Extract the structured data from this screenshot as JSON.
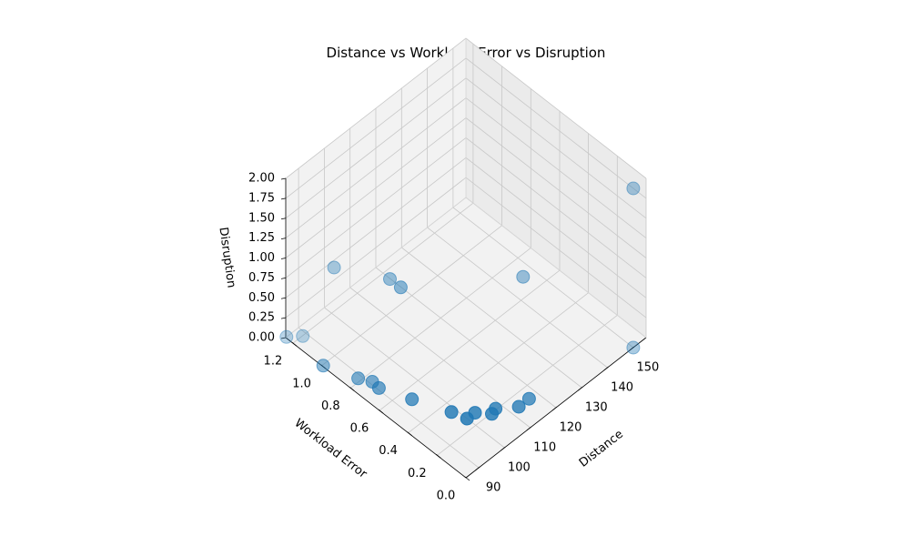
{
  "chart_data": {
    "type": "scatter",
    "projection": "3d",
    "title": "Distance vs Workload Error vs Disruption",
    "xlabel": "Distance",
    "ylabel": "Workload Error",
    "zlabel": "Disruption",
    "xlim": [
      85,
      155
    ],
    "ylim": [
      0.0,
      1.25
    ],
    "zlim": [
      0.0,
      2.0
    ],
    "x_ticks": [
      "90",
      "100",
      "110",
      "120",
      "130",
      "140",
      "150"
    ],
    "y_ticks": [
      "0.0",
      "0.2",
      "0.4",
      "0.6",
      "0.8",
      "1.0",
      "1.2"
    ],
    "z_ticks": [
      "0.00",
      "0.25",
      "0.50",
      "0.75",
      "1.00",
      "1.25",
      "1.50",
      "1.75",
      "2.00"
    ],
    "grid": true,
    "marker_color": "#1f77b4",
    "series": [
      {
        "points": [
          {
            "x": 150,
            "y": 0.0,
            "z": 0.0
          },
          {
            "x": 150,
            "y": 0.0,
            "z": 2.0
          },
          {
            "x": 126.4,
            "y": 0.343,
            "z": 1.0
          },
          {
            "x": 117,
            "y": 0.133,
            "z": 0.0
          },
          {
            "x": 113,
            "y": 0.133,
            "z": 0.0
          },
          {
            "x": 108,
            "y": 0.205,
            "z": 0.0
          },
          {
            "x": 106,
            "y": 0.195,
            "z": 0.0
          },
          {
            "x": 103,
            "y": 0.258,
            "z": 0.0
          },
          {
            "x": 100,
            "y": 0.26,
            "z": 0.0
          },
          {
            "x": 98.6,
            "y": 0.343,
            "z": 0.0
          },
          {
            "x": 94.1,
            "y": 0.537,
            "z": 0.0
          },
          {
            "x": 90.5,
            "y": 0.702,
            "z": 0.0
          },
          {
            "x": 90.8,
            "y": 0.753,
            "z": 0.0
          },
          {
            "x": 88.9,
            "y": 0.817,
            "z": 0.0
          },
          {
            "x": 85.3,
            "y": 0.995,
            "z": 0.0
          },
          {
            "x": 88.7,
            "y": 1.198,
            "z": 0.0
          },
          {
            "x": 85.3,
            "y": 1.25,
            "z": 0.0
          },
          {
            "x": 100,
            "y": 0.795,
            "z": 1.0
          },
          {
            "x": 100,
            "y": 0.72,
            "z": 1.0
          },
          {
            "x": 92,
            "y": 1.04,
            "z": 1.0
          }
        ]
      }
    ]
  }
}
